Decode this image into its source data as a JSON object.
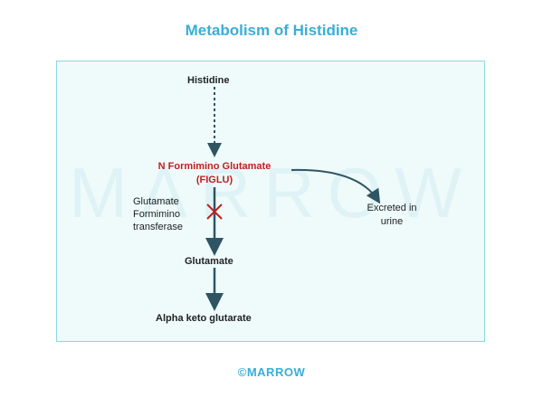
{
  "title": "Metabolism of Histidine",
  "watermark": "MARROW",
  "nodes": {
    "histidine": "Histidine",
    "figlu_line1": "N Formimino Glutamate",
    "figlu_line2": "(FIGLU)",
    "glutamate": "Glutamate",
    "akg": "Alpha keto glutarate"
  },
  "enzyme": {
    "line1": "Glutamate",
    "line2": "Formimino",
    "line3": "transferase"
  },
  "excreted": {
    "line1": "Excreted in",
    "line2": "urine"
  },
  "footer": "©MARROW",
  "colors": {
    "title": "#3aaed8",
    "arrow": "#2f5563",
    "figlu": "#c21f1f",
    "block": "#c21f1f"
  }
}
